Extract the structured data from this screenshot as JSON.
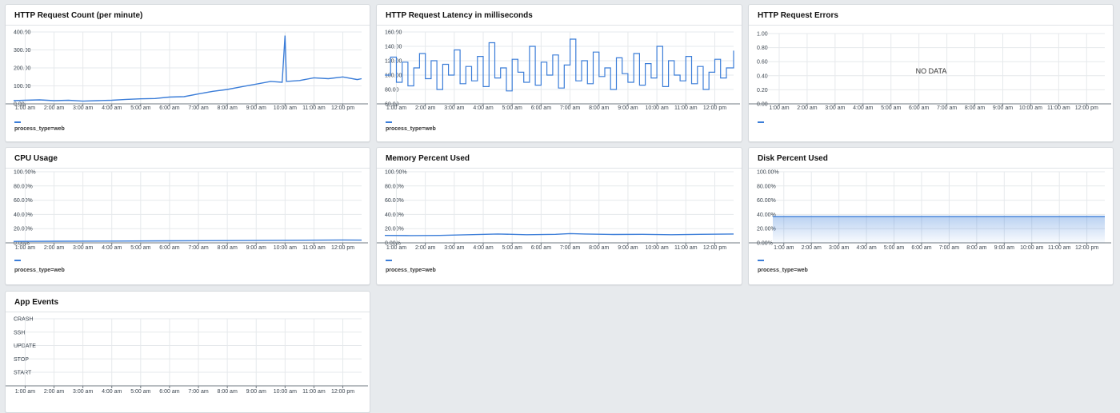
{
  "colors": {
    "series": "#3b7dd8",
    "grid": "#e6e9ec",
    "axis": "#6f7880",
    "page_bg": "#e7eaed"
  },
  "x_ticks": [
    "1:00 am",
    "2:00 am",
    "3:00 am",
    "4:00 am",
    "5:00 am",
    "6:00 am",
    "7:00 am",
    "8:00 am",
    "9:00 am",
    "10:00 am",
    "11:00 am",
    "12:00 pm"
  ],
  "panels": {
    "http_count": {
      "title": "HTTP Request Count (per minute)",
      "legend": "process_type=web"
    },
    "http_latency": {
      "title": "HTTP Request Latency in milliseconds",
      "legend": "process_type=web"
    },
    "http_errors": {
      "title": "HTTP Request Errors",
      "no_data": "NO DATA"
    },
    "cpu": {
      "title": "CPU Usage",
      "legend": "process_type=web"
    },
    "memory": {
      "title": "Memory Percent Used",
      "legend": "process_type=web"
    },
    "disk": {
      "title": "Disk Percent Used",
      "legend": "process_type=web"
    },
    "events": {
      "title": "App Events"
    }
  },
  "chart_data": [
    {
      "id": "http_count",
      "type": "line",
      "x_unit": "hours",
      "xlim": [
        0.6,
        12.65
      ],
      "yticks": [
        "400.00",
        "300.00",
        "200.00",
        "100.00",
        "0.00"
      ],
      "ylim": [
        0,
        400
      ],
      "x": [
        0.6,
        1.0,
        1.5,
        2.0,
        2.5,
        3.0,
        3.5,
        4.0,
        4.5,
        5.0,
        5.5,
        6.0,
        6.5,
        7.0,
        7.5,
        8.0,
        8.5,
        9.0,
        9.5,
        9.9,
        10.0,
        10.05,
        10.5,
        11.0,
        11.5,
        12.0,
        12.5,
        12.65
      ],
      "y": [
        18,
        20,
        22,
        18,
        20,
        15,
        18,
        20,
        25,
        28,
        30,
        38,
        40,
        55,
        70,
        80,
        95,
        110,
        125,
        120,
        380,
        125,
        130,
        145,
        140,
        150,
        135,
        140
      ]
    },
    {
      "id": "http_latency",
      "type": "line",
      "x_unit": "hours",
      "xlim": [
        0.6,
        12.65
      ],
      "yticks": [
        "160.00",
        "140.00",
        "120.00",
        "100.00",
        "80.00",
        "60.00"
      ],
      "ylim": [
        60,
        160
      ],
      "x": [
        0.6,
        0.8,
        1.0,
        1.2,
        1.4,
        1.6,
        1.8,
        2.0,
        2.2,
        2.4,
        2.6,
        2.8,
        3.0,
        3.2,
        3.4,
        3.6,
        3.8,
        4.0,
        4.2,
        4.4,
        4.6,
        4.8,
        5.0,
        5.2,
        5.4,
        5.6,
        5.8,
        6.0,
        6.2,
        6.4,
        6.6,
        6.8,
        7.0,
        7.2,
        7.4,
        7.6,
        7.8,
        8.0,
        8.2,
        8.4,
        8.6,
        8.8,
        9.0,
        9.2,
        9.4,
        9.6,
        9.8,
        10.0,
        10.2,
        10.4,
        10.6,
        10.8,
        11.0,
        11.2,
        11.4,
        11.6,
        11.8,
        12.0,
        12.2,
        12.4,
        12.65
      ],
      "y": [
        100,
        125,
        90,
        118,
        85,
        110,
        130,
        95,
        120,
        80,
        115,
        100,
        135,
        88,
        112,
        92,
        126,
        84,
        145,
        96,
        110,
        78,
        122,
        104,
        90,
        140,
        86,
        118,
        100,
        128,
        82,
        114,
        150,
        92,
        120,
        88,
        132,
        98,
        110,
        80,
        124,
        102,
        90,
        130,
        86,
        116,
        96,
        140,
        84,
        120,
        100,
        92,
        126,
        88,
        112,
        80,
        104,
        122,
        96,
        110,
        134
      ]
    },
    {
      "id": "http_errors",
      "type": "line",
      "x_unit": "hours",
      "xlim": [
        0.6,
        12.65
      ],
      "yticks": [
        "1.00",
        "0.80",
        "0.60",
        "0.40",
        "0.20",
        "0.00"
      ],
      "ylim": [
        0,
        1
      ],
      "x": [],
      "y": []
    },
    {
      "id": "cpu",
      "type": "line",
      "x_unit": "hours",
      "xlim": [
        0.6,
        12.65
      ],
      "yticks": [
        "100.00%",
        "80.00%",
        "60.00%",
        "40.00%",
        "20.00%",
        "0.00%"
      ],
      "ylim": [
        0,
        100
      ],
      "x": [
        0.6,
        2.0,
        4.0,
        6.0,
        8.0,
        10.0,
        12.0,
        12.65
      ],
      "y": [
        2,
        2.2,
        2.5,
        2.8,
        3.2,
        3.6,
        4.0,
        3.8
      ]
    },
    {
      "id": "memory",
      "type": "line",
      "x_unit": "hours",
      "xlim": [
        0.6,
        12.65
      ],
      "yticks": [
        "100.00%",
        "80.00%",
        "60.00%",
        "40.00%",
        "20.00%",
        "0.00%"
      ],
      "ylim": [
        0,
        100
      ],
      "x": [
        0.6,
        1.5,
        2.5,
        3.5,
        4.5,
        5.5,
        6.5,
        7.0,
        7.5,
        8.5,
        9.5,
        10.5,
        11.5,
        12.65
      ],
      "y": [
        10.5,
        10.2,
        10.5,
        11.5,
        12.5,
        11.5,
        12.0,
        13.0,
        12.5,
        11.8,
        12.0,
        11.5,
        12.0,
        12.5
      ]
    },
    {
      "id": "disk",
      "type": "area",
      "x_unit": "hours",
      "xlim": [
        0.6,
        12.65
      ],
      "yticks": [
        "100.00%",
        "80.00%",
        "60.00%",
        "40.00%",
        "20.00%",
        "0.00%"
      ],
      "ylim": [
        0,
        100
      ],
      "x": [
        0.6,
        12.65
      ],
      "y": [
        37,
        37
      ]
    },
    {
      "id": "events",
      "type": "scatter",
      "x_unit": "hours",
      "xlim": [
        0.6,
        12.65
      ],
      "ycategories": [
        "CRASH",
        "SSH",
        "UPDATE",
        "STOP",
        "START"
      ],
      "x": [],
      "y": []
    }
  ]
}
